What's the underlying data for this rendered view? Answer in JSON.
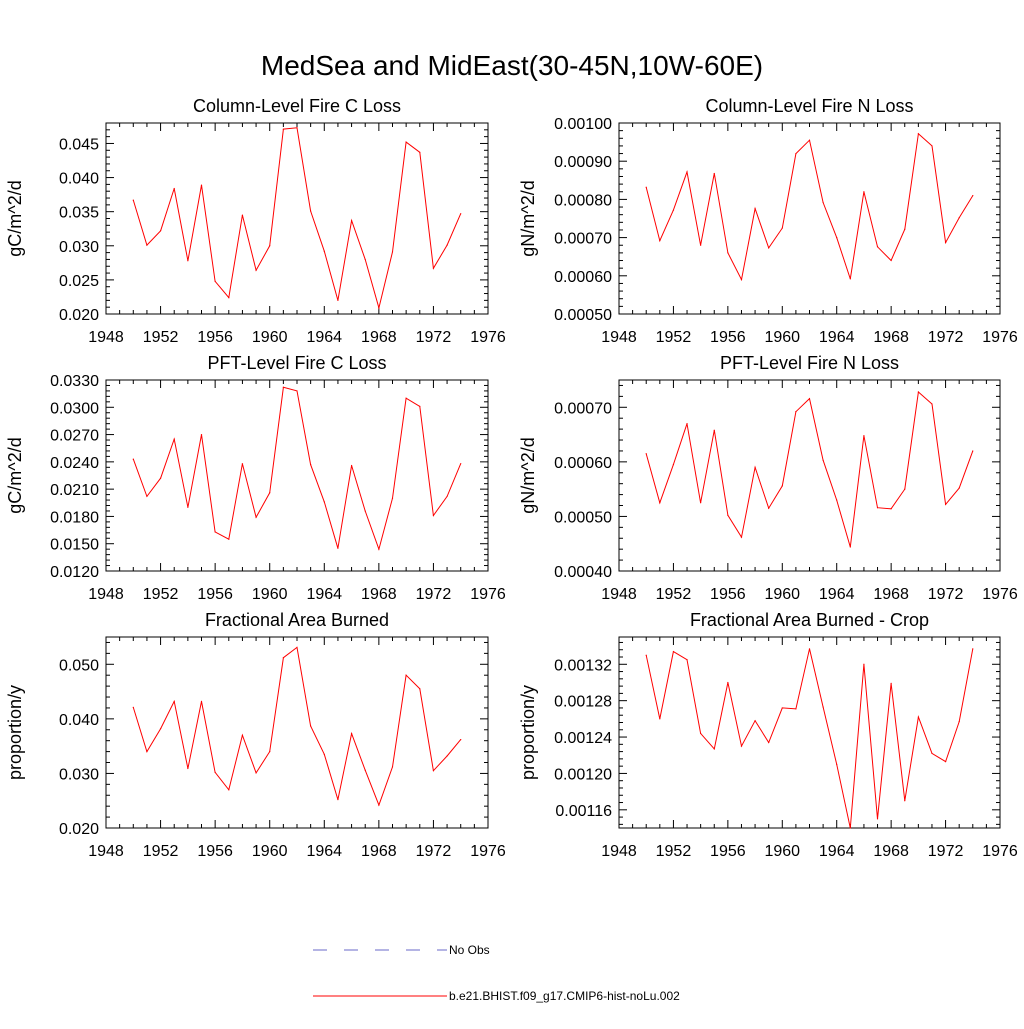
{
  "title": "MedSea and MidEast(30-45N,10W-60E)",
  "legend": {
    "items": [
      {
        "label": "No Obs",
        "color": "#6a6ac8",
        "style": "dashed"
      },
      {
        "label": "b.e21.BHIST.f09_g17.CMIP6-hist-noLu.002",
        "color": "#ff0000",
        "style": "solid"
      }
    ]
  },
  "chart_data": [
    {
      "type": "line",
      "title": "Column-Level Fire C Loss",
      "ylabel": "gC/m^2/d",
      "xlim": [
        1948,
        1976
      ],
      "ylim": [
        0.02,
        0.048
      ],
      "xticks": [
        1948,
        1952,
        1956,
        1960,
        1964,
        1968,
        1972,
        1976
      ],
      "yticks": [
        "0.020",
        "0.025",
        "0.030",
        "0.035",
        "0.040",
        "0.045"
      ],
      "yticks_values": [
        0.02,
        0.025,
        0.03,
        0.035,
        0.04,
        0.045
      ],
      "x": [
        1950,
        1951,
        1952,
        1953,
        1954,
        1955,
        1956,
        1957,
        1958,
        1959,
        1960,
        1961,
        1962,
        1963,
        1964,
        1965,
        1966,
        1967,
        1968,
        1969,
        1970,
        1971,
        1972,
        1973,
        1974
      ],
      "series": [
        {
          "values": [
            0.0367,
            0.0301,
            0.0322,
            0.0384,
            0.0278,
            0.0389,
            0.0248,
            0.0224,
            0.0345,
            0.0264,
            0.03,
            0.0471,
            0.0473,
            0.0351,
            0.0292,
            0.022,
            0.0337,
            0.028,
            0.0209,
            0.0291,
            0.0452,
            0.0437,
            0.0267,
            0.0301,
            0.0347
          ],
          "color": "#ff0000"
        }
      ]
    },
    {
      "type": "line",
      "title": "Column-Level Fire N Loss",
      "ylabel": "gN/m^2/d",
      "xlim": [
        1948,
        1976
      ],
      "ylim": [
        0.0005,
        0.001
      ],
      "xticks": [
        1948,
        1952,
        1956,
        1960,
        1964,
        1968,
        1972,
        1976
      ],
      "yticks": [
        "0.00050",
        "0.00060",
        "0.00070",
        "0.00080",
        "0.00090",
        "0.00100"
      ],
      "yticks_values": [
        0.0005,
        0.0006,
        0.0007,
        0.0008,
        0.0009,
        0.001
      ],
      "x": [
        1950,
        1951,
        1952,
        1953,
        1954,
        1955,
        1956,
        1957,
        1958,
        1959,
        1960,
        1961,
        1962,
        1963,
        1964,
        1965,
        1966,
        1967,
        1968,
        1969,
        1970,
        1971,
        1972,
        1973,
        1974
      ],
      "series": [
        {
          "values": [
            0.000832,
            0.000692,
            0.000772,
            0.000872,
            0.00068,
            0.000868,
            0.00066,
            0.00059,
            0.000776,
            0.000673,
            0.000725,
            0.00092,
            0.000955,
            0.000792,
            0.0007,
            0.000592,
            0.00082,
            0.000676,
            0.00064,
            0.000722,
            0.000972,
            0.00094,
            0.000687,
            0.000752,
            0.00081
          ],
          "color": "#ff0000"
        }
      ]
    },
    {
      "type": "line",
      "title": "PFT-Level Fire C Loss",
      "ylabel": "gC/m^2/d",
      "xlim": [
        1948,
        1976
      ],
      "ylim": [
        0.012,
        0.033
      ],
      "xticks": [
        1948,
        1952,
        1956,
        1960,
        1964,
        1968,
        1972,
        1976
      ],
      "yticks": [
        "0.0120",
        "0.0150",
        "0.0180",
        "0.0210",
        "0.0240",
        "0.0270",
        "0.0300",
        "0.0330"
      ],
      "yticks_values": [
        0.012,
        0.015,
        0.018,
        0.021,
        0.024,
        0.027,
        0.03,
        0.033
      ],
      "x": [
        1950,
        1951,
        1952,
        1953,
        1954,
        1955,
        1956,
        1957,
        1958,
        1959,
        1960,
        1961,
        1962,
        1963,
        1964,
        1965,
        1966,
        1967,
        1968,
        1969,
        1970,
        1971,
        1972,
        1973,
        1974
      ],
      "series": [
        {
          "values": [
            0.0243,
            0.0202,
            0.0222,
            0.0265,
            0.019,
            0.027,
            0.0163,
            0.0155,
            0.0238,
            0.0179,
            0.0206,
            0.0322,
            0.0318,
            0.0237,
            0.0196,
            0.0145,
            0.0236,
            0.0186,
            0.0144,
            0.02,
            0.031,
            0.0301,
            0.0181,
            0.0202,
            0.0238
          ],
          "color": "#ff0000"
        }
      ]
    },
    {
      "type": "line",
      "title": "PFT-Level Fire N Loss",
      "ylabel": "gN/m^2/d",
      "xlim": [
        1948,
        1976
      ],
      "ylim": [
        0.0004,
        0.00075
      ],
      "xticks": [
        1948,
        1952,
        1956,
        1960,
        1964,
        1968,
        1972,
        1976
      ],
      "yticks": [
        "0.00040",
        "0.00050",
        "0.00060",
        "0.00070"
      ],
      "yticks_values": [
        0.0004,
        0.0005,
        0.0006,
        0.0007
      ],
      "x": [
        1950,
        1951,
        1952,
        1953,
        1954,
        1955,
        1956,
        1957,
        1958,
        1959,
        1960,
        1961,
        1962,
        1963,
        1964,
        1965,
        1966,
        1967,
        1968,
        1969,
        1970,
        1971,
        1972,
        1973,
        1974
      ],
      "series": [
        {
          "values": [
            0.000615,
            0.000525,
            0.000595,
            0.00067,
            0.000525,
            0.000658,
            0.000502,
            0.000462,
            0.00059,
            0.000515,
            0.000556,
            0.000692,
            0.000716,
            0.000603,
            0.00053,
            0.000444,
            0.000648,
            0.000516,
            0.000514,
            0.00055,
            0.000728,
            0.000706,
            0.000522,
            0.000552,
            0.00062
          ],
          "color": "#ff0000"
        }
      ]
    },
    {
      "type": "line",
      "title": "Fractional Area Burned",
      "ylabel": "proportion/y",
      "xlim": [
        1948,
        1976
      ],
      "ylim": [
        0.02,
        0.055
      ],
      "xticks": [
        1948,
        1952,
        1956,
        1960,
        1964,
        1968,
        1972,
        1976
      ],
      "yticks": [
        "0.020",
        "0.030",
        "0.040",
        "0.050"
      ],
      "yticks_values": [
        0.02,
        0.03,
        0.04,
        0.05
      ],
      "x": [
        1950,
        1951,
        1952,
        1953,
        1954,
        1955,
        1956,
        1957,
        1958,
        1959,
        1960,
        1961,
        1962,
        1963,
        1964,
        1965,
        1966,
        1967,
        1968,
        1969,
        1970,
        1971,
        1972,
        1973,
        1974
      ],
      "series": [
        {
          "values": [
            0.0421,
            0.034,
            0.0382,
            0.0432,
            0.0309,
            0.0432,
            0.0302,
            0.027,
            0.037,
            0.0301,
            0.034,
            0.0512,
            0.0531,
            0.0387,
            0.0335,
            0.0252,
            0.0373,
            0.0306,
            0.0242,
            0.0312,
            0.048,
            0.0455,
            0.0305,
            0.0332,
            0.0362
          ],
          "color": "#ff0000"
        }
      ]
    },
    {
      "type": "line",
      "title": "Fractional Area Burned - Crop",
      "ylabel": "proportion/y",
      "xlim": [
        1948,
        1976
      ],
      "ylim": [
        0.00114,
        0.00135
      ],
      "xticks": [
        1948,
        1952,
        1956,
        1960,
        1964,
        1968,
        1972,
        1976
      ],
      "yticks": [
        "0.00116",
        "0.00120",
        "0.00124",
        "0.00128",
        "0.00132"
      ],
      "yticks_values": [
        0.00116,
        0.0012,
        0.00124,
        0.00128,
        0.00132
      ],
      "x": [
        1950,
        1951,
        1952,
        1953,
        1954,
        1955,
        1956,
        1957,
        1958,
        1959,
        1960,
        1961,
        1962,
        1963,
        1964,
        1965,
        1966,
        1967,
        1968,
        1969,
        1970,
        1971,
        1972,
        1973,
        1974
      ],
      "series": [
        {
          "values": [
            0.00133,
            0.00126,
            0.001334,
            0.001325,
            0.001244,
            0.001227,
            0.0013,
            0.00123,
            0.001258,
            0.001234,
            0.001272,
            0.001271,
            0.001337,
            0.001273,
            0.00121,
            0.00114,
            0.00132,
            0.00115,
            0.001299,
            0.00117,
            0.001262,
            0.001222,
            0.001213,
            0.001257,
            0.001337
          ],
          "color": "#ff0000"
        }
      ]
    }
  ]
}
